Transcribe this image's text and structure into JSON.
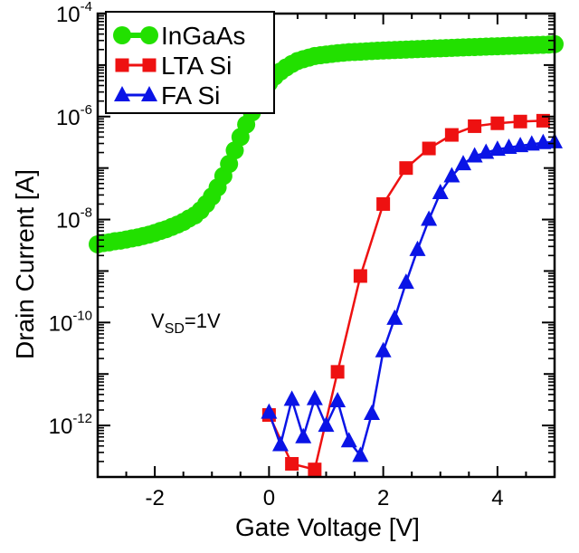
{
  "chart_data": {
    "type": "scatter",
    "xlabel": "Gate Voltage [V]",
    "ylabel": "Drain Current [A]",
    "xlim": [
      -3,
      5
    ],
    "ylim": [
      1e-13,
      0.0001
    ],
    "yscale": "log",
    "x_ticks": [
      {
        "value": -2,
        "label": "-2"
      },
      {
        "value": 0,
        "label": "0"
      },
      {
        "value": 2,
        "label": "2"
      },
      {
        "value": 4,
        "label": "4"
      }
    ],
    "y_ticks": [
      {
        "value": 1e-12,
        "base": "10",
        "exp": "-12"
      },
      {
        "value": 1e-10,
        "base": "10",
        "exp": "-10"
      },
      {
        "value": 1e-08,
        "base": "10",
        "exp": "-8"
      },
      {
        "value": 1e-06,
        "base": "10",
        "exp": "-6"
      },
      {
        "value": 0.0001,
        "base": "10",
        "exp": "-4"
      }
    ],
    "annotation": {
      "main": "V",
      "sub": "SD",
      "rest": "=1V"
    },
    "legend_position": "top-left",
    "series": [
      {
        "name": "InGaAs",
        "color": "#22e000",
        "marker": "circle",
        "x": [
          -3.0,
          -2.9,
          -2.8,
          -2.7,
          -2.6,
          -2.5,
          -2.4,
          -2.3,
          -2.2,
          -2.1,
          -2.0,
          -1.9,
          -1.8,
          -1.7,
          -1.6,
          -1.5,
          -1.4,
          -1.3,
          -1.2,
          -1.1,
          -1.0,
          -0.9,
          -0.8,
          -0.7,
          -0.6,
          -0.5,
          -0.4,
          -0.3,
          -0.2,
          -0.1,
          0.0,
          0.1,
          0.2,
          0.3,
          0.4,
          0.5,
          0.6,
          0.7,
          0.8,
          0.9,
          1.0,
          1.1,
          1.2,
          1.3,
          1.4,
          1.5,
          1.6,
          1.7,
          1.8,
          1.9,
          2.0,
          2.1,
          2.2,
          2.3,
          2.4,
          2.5,
          2.6,
          2.7,
          2.8,
          2.9,
          3.0,
          3.1,
          3.2,
          3.3,
          3.4,
          3.5,
          3.6,
          3.7,
          3.8,
          3.9,
          4.0,
          4.1,
          4.2,
          4.3,
          4.4,
          4.5,
          4.6,
          4.7,
          4.8,
          4.9,
          5.0
        ],
        "y": [
          3.3e-09,
          3.5e-09,
          3.6e-09,
          3.8e-09,
          3.9e-09,
          4.1e-09,
          4.3e-09,
          4.5e-09,
          4.8e-09,
          5.1e-09,
          5.5e-09,
          6e-09,
          6.5e-09,
          7.2e-09,
          8e-09,
          9e-09,
          1.05e-08,
          1.2e-08,
          1.5e-08,
          2e-08,
          2.8e-08,
          4.2e-08,
          7e-08,
          1.2e-07,
          2.2e-07,
          4e-07,
          7e-07,
          1.2e-06,
          2e-06,
          3e-06,
          4.5e-06,
          6e-06,
          7.5e-06,
          9e-06,
          1.05e-05,
          1.2e-05,
          1.3e-05,
          1.4e-05,
          1.5e-05,
          1.55e-05,
          1.6e-05,
          1.65e-05,
          1.7e-05,
          1.74e-05,
          1.78e-05,
          1.8e-05,
          1.82e-05,
          1.85e-05,
          1.87e-05,
          1.9e-05,
          1.92e-05,
          1.94e-05,
          1.96e-05,
          1.98e-05,
          2e-05,
          2.02e-05,
          2.04e-05,
          2.06e-05,
          2.08e-05,
          2.1e-05,
          2.12e-05,
          2.14e-05,
          2.16e-05,
          2.18e-05,
          2.2e-05,
          2.22e-05,
          2.24e-05,
          2.26e-05,
          2.28e-05,
          2.3e-05,
          2.32e-05,
          2.34e-05,
          2.36e-05,
          2.38e-05,
          2.4e-05,
          2.42e-05,
          2.44e-05,
          2.46e-05,
          2.48e-05,
          2.5e-05,
          2.55e-05
        ]
      },
      {
        "name": "LTA Si",
        "color": "#ee1111",
        "marker": "square",
        "x": [
          0.0,
          0.4,
          0.8,
          1.2,
          1.6,
          2.0,
          2.4,
          2.8,
          3.2,
          3.6,
          4.0,
          4.4,
          4.8
        ],
        "y": [
          1.6e-12,
          1.8e-13,
          1.4e-13,
          1.1e-11,
          8e-10,
          2e-08,
          1e-07,
          2.4e-07,
          4.4e-07,
          6.5e-07,
          7.4e-07,
          8e-07,
          8.3e-07
        ]
      },
      {
        "name": "FA Si",
        "color": "#0a14e6",
        "marker": "triangle",
        "x": [
          0.0,
          0.2,
          0.4,
          0.6,
          0.8,
          1.0,
          1.2,
          1.4,
          1.6,
          1.8,
          2.0,
          2.2,
          2.4,
          2.6,
          2.8,
          3.0,
          3.2,
          3.4,
          3.6,
          3.8,
          4.0,
          4.2,
          4.4,
          4.6,
          4.8,
          5.0
        ],
        "y": [
          1.8e-12,
          4.2e-13,
          3.2e-12,
          6e-13,
          3.3e-12,
          1e-12,
          3e-12,
          5e-13,
          2.6e-13,
          1.7e-12,
          2.8e-11,
          1.2e-10,
          6e-10,
          2.6e-09,
          1e-08,
          3.3e-08,
          7e-08,
          1.2e-07,
          1.7e-07,
          2e-07,
          2.3e-07,
          2.5e-07,
          2.7e-07,
          2.9e-07,
          3.1e-07,
          3.2e-07
        ]
      }
    ]
  }
}
